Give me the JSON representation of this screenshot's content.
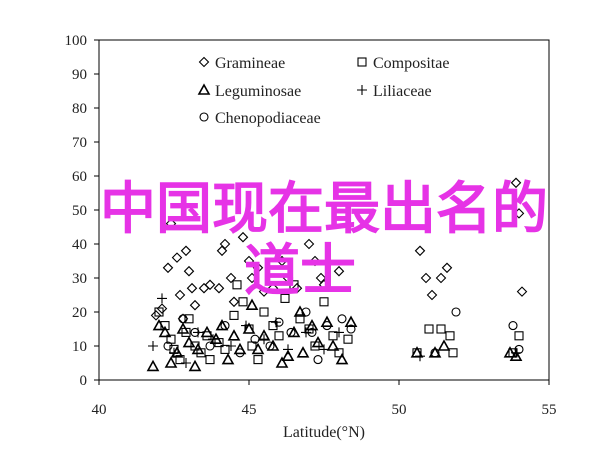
{
  "chart_data": {
    "type": "scatter",
    "xlabel": "Latitude(°N)",
    "ylabel": "",
    "xlim": [
      40,
      55
    ],
    "ylim": [
      0,
      100
    ],
    "x_ticks": [
      40,
      45,
      50,
      55
    ],
    "y_ticks": [
      0,
      10,
      20,
      30,
      40,
      50,
      60,
      70,
      80,
      90,
      100
    ],
    "grid": false,
    "legend_position": "top-center",
    "series": [
      {
        "name": "Gramineae",
        "marker": "diamond",
        "points": [
          [
            41.9,
            19
          ],
          [
            42.1,
            21
          ],
          [
            42.3,
            33
          ],
          [
            42.4,
            46
          ],
          [
            42.6,
            36
          ],
          [
            42.7,
            25
          ],
          [
            42.8,
            18
          ],
          [
            42.9,
            38
          ],
          [
            43.0,
            32
          ],
          [
            43.1,
            27
          ],
          [
            43.2,
            22
          ],
          [
            43.5,
            27
          ],
          [
            43.7,
            28
          ],
          [
            44.0,
            27
          ],
          [
            44.1,
            38
          ],
          [
            44.2,
            40
          ],
          [
            44.4,
            30
          ],
          [
            44.5,
            23
          ],
          [
            44.8,
            42
          ],
          [
            45.0,
            35
          ],
          [
            45.1,
            30
          ],
          [
            45.3,
            33
          ],
          [
            45.5,
            26
          ],
          [
            45.8,
            27
          ],
          [
            46.1,
            35
          ],
          [
            46.3,
            30
          ],
          [
            46.6,
            27
          ],
          [
            47.0,
            40
          ],
          [
            47.2,
            35
          ],
          [
            47.4,
            30
          ],
          [
            47.5,
            28
          ],
          [
            48.0,
            32
          ],
          [
            50.7,
            38
          ],
          [
            50.9,
            30
          ],
          [
            51.1,
            25
          ],
          [
            51.4,
            30
          ],
          [
            51.6,
            33
          ],
          [
            53.9,
            58
          ],
          [
            54.0,
            49
          ],
          [
            54.1,
            26
          ]
        ]
      },
      {
        "name": "Compositae",
        "marker": "square",
        "points": [
          [
            42.0,
            20
          ],
          [
            42.2,
            16
          ],
          [
            42.4,
            12
          ],
          [
            42.5,
            9
          ],
          [
            42.7,
            6
          ],
          [
            42.9,
            14
          ],
          [
            43.0,
            18
          ],
          [
            43.2,
            10
          ],
          [
            43.4,
            8
          ],
          [
            43.6,
            13
          ],
          [
            43.7,
            6
          ],
          [
            44.0,
            11
          ],
          [
            44.2,
            9
          ],
          [
            44.5,
            19
          ],
          [
            44.6,
            28
          ],
          [
            44.8,
            23
          ],
          [
            45.0,
            15
          ],
          [
            45.1,
            10
          ],
          [
            45.3,
            6
          ],
          [
            45.5,
            20
          ],
          [
            45.8,
            16
          ],
          [
            46.0,
            13
          ],
          [
            46.2,
            24
          ],
          [
            46.5,
            28
          ],
          [
            46.7,
            18
          ],
          [
            47.0,
            15
          ],
          [
            47.2,
            10
          ],
          [
            47.5,
            23
          ],
          [
            47.8,
            13
          ],
          [
            48.0,
            8
          ],
          [
            48.3,
            12
          ],
          [
            50.6,
            8
          ],
          [
            51.0,
            15
          ],
          [
            51.4,
            15
          ],
          [
            51.7,
            13
          ],
          [
            51.8,
            8
          ],
          [
            53.8,
            8
          ],
          [
            54.0,
            13
          ]
        ]
      },
      {
        "name": "Leguminosae",
        "marker": "triangle",
        "points": [
          [
            41.8,
            4
          ],
          [
            42.0,
            16
          ],
          [
            42.2,
            14
          ],
          [
            42.4,
            5
          ],
          [
            42.6,
            8
          ],
          [
            42.8,
            15
          ],
          [
            43.0,
            11
          ],
          [
            43.2,
            4
          ],
          [
            43.3,
            9
          ],
          [
            43.6,
            14
          ],
          [
            43.9,
            12
          ],
          [
            44.1,
            16
          ],
          [
            44.3,
            6
          ],
          [
            44.5,
            13
          ],
          [
            44.7,
            9
          ],
          [
            45.0,
            15
          ],
          [
            45.1,
            22
          ],
          [
            45.3,
            9
          ],
          [
            45.5,
            13
          ],
          [
            45.8,
            10
          ],
          [
            46.1,
            5
          ],
          [
            46.3,
            7
          ],
          [
            46.5,
            14
          ],
          [
            46.7,
            20
          ],
          [
            46.8,
            8
          ],
          [
            47.1,
            16
          ],
          [
            47.3,
            11
          ],
          [
            47.6,
            17
          ],
          [
            47.8,
            10
          ],
          [
            48.1,
            6
          ],
          [
            48.4,
            17
          ],
          [
            50.6,
            8
          ],
          [
            51.2,
            8
          ],
          [
            51.5,
            10
          ],
          [
            53.7,
            8
          ],
          [
            53.9,
            7
          ]
        ]
      },
      {
        "name": "Liliaceae",
        "marker": "plus",
        "points": [
          [
            41.8,
            10
          ],
          [
            42.1,
            24
          ],
          [
            42.5,
            8
          ],
          [
            42.9,
            5
          ],
          [
            43.3,
            14
          ],
          [
            43.8,
            12
          ],
          [
            44.4,
            10
          ],
          [
            44.9,
            16
          ],
          [
            45.5,
            12
          ],
          [
            45.9,
            17
          ],
          [
            46.3,
            9
          ],
          [
            46.9,
            14
          ],
          [
            47.5,
            9
          ],
          [
            48.0,
            14
          ],
          [
            50.7,
            7
          ],
          [
            53.9,
            8
          ]
        ]
      },
      {
        "name": "Chenopodiaceae",
        "marker": "circle",
        "points": [
          [
            42.3,
            10
          ],
          [
            42.8,
            18
          ],
          [
            43.2,
            14
          ],
          [
            43.7,
            10
          ],
          [
            44.2,
            16
          ],
          [
            44.7,
            8
          ],
          [
            45.2,
            12
          ],
          [
            45.7,
            10
          ],
          [
            46.0,
            17
          ],
          [
            46.4,
            14
          ],
          [
            46.9,
            20
          ],
          [
            47.1,
            14
          ],
          [
            47.3,
            6
          ],
          [
            47.6,
            16
          ],
          [
            48.1,
            18
          ],
          [
            48.4,
            15
          ],
          [
            51.2,
            8
          ],
          [
            51.9,
            20
          ],
          [
            53.8,
            16
          ],
          [
            54.0,
            9
          ]
        ]
      }
    ]
  },
  "overlay": {
    "line1": "中国现在最出名的",
    "line2": "道士"
  },
  "colors": {
    "overlay": "#e633e6",
    "axis": "#000000",
    "marker": "#000000"
  }
}
